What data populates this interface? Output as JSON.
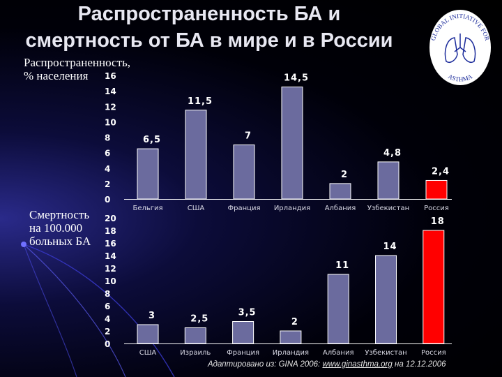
{
  "title": {
    "line1": "Распространенность БА и",
    "line2": "смертность от БА в мире и в России"
  },
  "logo": {
    "text_top": "GLOBAL INITIATIVE FOR",
    "text_bottom": "ASTHMA"
  },
  "source": {
    "prefix": "Адаптировано из: GINA 2006: ",
    "link": "www.ginasthma.org",
    "suffix": " на 12.12.2006"
  },
  "colors": {
    "bar": "#6b6b9e",
    "bar_highlight": "#ff0000",
    "background": "#000010"
  },
  "chart_data": [
    {
      "type": "bar",
      "title": "",
      "ylabel": "Распространенность,\n% населения",
      "categories": [
        "Бельгия",
        "США",
        "Франция",
        "Ирландия",
        "Албания",
        "Узбекистан",
        "Россия"
      ],
      "values": [
        6.5,
        11.5,
        7,
        14.5,
        2,
        4.8,
        2.4
      ],
      "data_labels": [
        "6,5",
        "11,5",
        "7",
        "14,5",
        "2",
        "4,8",
        "2,4"
      ],
      "highlight": [
        "Россия"
      ],
      "ylim": [
        0,
        16
      ],
      "yticks": [
        0,
        2,
        4,
        6,
        8,
        10,
        12,
        14,
        16
      ],
      "grid": false,
      "legend": "none"
    },
    {
      "type": "bar",
      "title": "",
      "ylabel": "Смертность\nна 100.000\nбольных БА",
      "categories": [
        "США",
        "Израиль",
        "Франция",
        "Ирландия",
        "Албания",
        "Узбекистан",
        "Россия"
      ],
      "values": [
        3,
        2.5,
        3.5,
        2,
        11,
        14,
        18
      ],
      "data_labels": [
        "3",
        "2,5",
        "3,5",
        "2",
        "11",
        "14",
        "18"
      ],
      "highlight": [
        "Россия"
      ],
      "ylim": [
        0,
        20
      ],
      "yticks": [
        0,
        2,
        4,
        6,
        8,
        10,
        12,
        14,
        16,
        18,
        20
      ],
      "grid": false,
      "legend": "none"
    }
  ]
}
